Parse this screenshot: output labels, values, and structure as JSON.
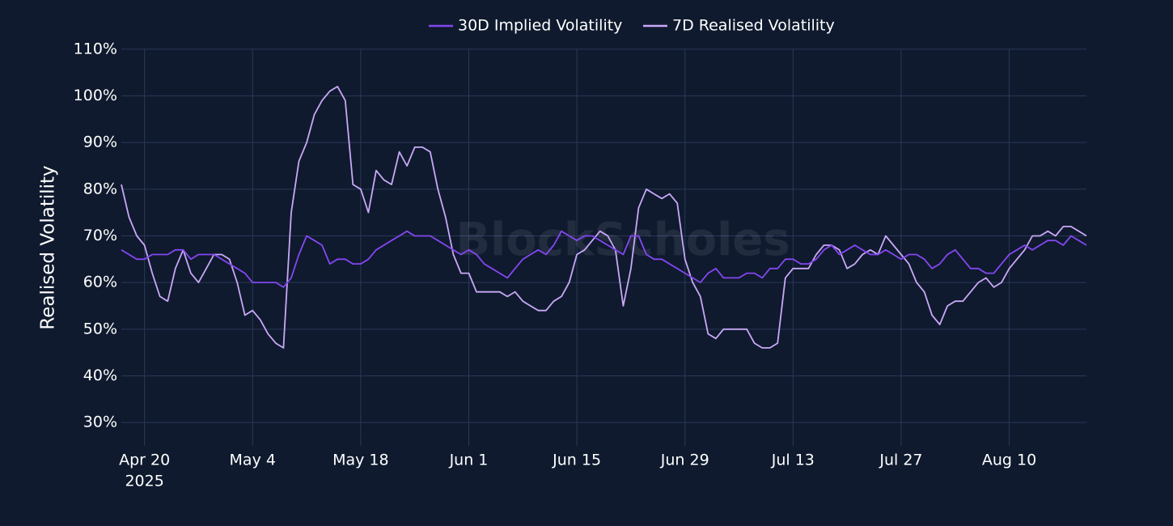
{
  "chart_data": {
    "type": "line",
    "y_axis_label": "Realised Volatility",
    "watermark": "BlockScholes",
    "x_year_label": "2025",
    "x": [
      "2025-04-17",
      "2025-04-18",
      "2025-04-19",
      "2025-04-20",
      "2025-04-21",
      "2025-04-22",
      "2025-04-23",
      "2025-04-24",
      "2025-04-25",
      "2025-04-26",
      "2025-04-27",
      "2025-04-28",
      "2025-04-29",
      "2025-04-30",
      "2025-05-01",
      "2025-05-02",
      "2025-05-03",
      "2025-05-04",
      "2025-05-05",
      "2025-05-06",
      "2025-05-07",
      "2025-05-08",
      "2025-05-09",
      "2025-05-10",
      "2025-05-11",
      "2025-05-12",
      "2025-05-13",
      "2025-05-14",
      "2025-05-15",
      "2025-05-16",
      "2025-05-17",
      "2025-05-18",
      "2025-05-19",
      "2025-05-20",
      "2025-05-21",
      "2025-05-22",
      "2025-05-23",
      "2025-05-24",
      "2025-05-25",
      "2025-05-26",
      "2025-05-27",
      "2025-05-28",
      "2025-05-29",
      "2025-05-30",
      "2025-05-31",
      "2025-06-01",
      "2025-06-02",
      "2025-06-03",
      "2025-06-04",
      "2025-06-05",
      "2025-06-06",
      "2025-06-07",
      "2025-06-08",
      "2025-06-09",
      "2025-06-10",
      "2025-06-11",
      "2025-06-12",
      "2025-06-13",
      "2025-06-14",
      "2025-06-15",
      "2025-06-16",
      "2025-06-17",
      "2025-06-18",
      "2025-06-19",
      "2025-06-20",
      "2025-06-21",
      "2025-06-22",
      "2025-06-23",
      "2025-06-24",
      "2025-06-25",
      "2025-06-26",
      "2025-06-27",
      "2025-06-28",
      "2025-06-29",
      "2025-06-30",
      "2025-07-01",
      "2025-07-02",
      "2025-07-03",
      "2025-07-04",
      "2025-07-05",
      "2025-07-06",
      "2025-07-07",
      "2025-07-08",
      "2025-07-09",
      "2025-07-10",
      "2025-07-11",
      "2025-07-12",
      "2025-07-13",
      "2025-07-14",
      "2025-07-15",
      "2025-07-16",
      "2025-07-17",
      "2025-07-18",
      "2025-07-19",
      "2025-07-20",
      "2025-07-21",
      "2025-07-22",
      "2025-07-23",
      "2025-07-24",
      "2025-07-25",
      "2025-07-26",
      "2025-07-27",
      "2025-07-28",
      "2025-07-29",
      "2025-07-30",
      "2025-07-31",
      "2025-08-01",
      "2025-08-02",
      "2025-08-03",
      "2025-08-04",
      "2025-08-05",
      "2025-08-06",
      "2025-08-07",
      "2025-08-08",
      "2025-08-09",
      "2025-08-10",
      "2025-08-11",
      "2025-08-12",
      "2025-08-13",
      "2025-08-14",
      "2025-08-15",
      "2025-08-16",
      "2025-08-17",
      "2025-08-18",
      "2025-08-19",
      "2025-08-20"
    ],
    "series": [
      {
        "name": "30D Implied Volatility",
        "color": "#8447f0",
        "values": [
          67,
          66,
          65,
          65,
          66,
          66,
          66,
          67,
          67,
          65,
          66,
          66,
          66,
          65,
          64,
          63,
          62,
          60,
          60,
          60,
          60,
          59,
          61,
          66,
          70,
          69,
          68,
          64,
          65,
          65,
          64,
          64,
          65,
          67,
          68,
          69,
          70,
          71,
          70,
          70,
          70,
          69,
          68,
          67,
          66,
          67,
          66,
          64,
          63,
          62,
          61,
          63,
          65,
          66,
          67,
          66,
          68,
          71,
          70,
          69,
          70,
          70,
          69,
          68,
          67,
          66,
          70,
          70,
          66,
          65,
          65,
          64,
          63,
          62,
          61,
          60,
          62,
          63,
          61,
          61,
          61,
          62,
          62,
          61,
          63,
          63,
          65,
          65,
          64,
          64,
          65,
          67,
          68,
          66,
          67,
          68,
          67,
          66,
          66,
          67,
          66,
          65,
          66,
          66,
          65,
          63,
          64,
          66,
          67,
          65,
          63,
          63,
          62,
          62,
          64,
          66,
          67,
          68,
          67,
          68,
          69,
          69,
          68,
          70,
          69,
          68
        ]
      },
      {
        "name": "7D Realised Volatility",
        "color": "#c9a8f7",
        "values": [
          81,
          74,
          70,
          68,
          62,
          57,
          56,
          63,
          67,
          62,
          60,
          63,
          66,
          66,
          65,
          60,
          53,
          54,
          52,
          49,
          47,
          46,
          75,
          86,
          90,
          96,
          99,
          101,
          102,
          99,
          81,
          80,
          75,
          84,
          82,
          81,
          88,
          85,
          89,
          89,
          88,
          80,
          74,
          66,
          62,
          62,
          58,
          58,
          58,
          58,
          57,
          58,
          56,
          55,
          54,
          54,
          56,
          57,
          60,
          66,
          67,
          69,
          71,
          70,
          67,
          55,
          63,
          76,
          80,
          79,
          78,
          79,
          77,
          65,
          60,
          57,
          49,
          48,
          50,
          50,
          50,
          50,
          47,
          46,
          46,
          47,
          61,
          63,
          63,
          63,
          66,
          68,
          68,
          67,
          63,
          64,
          66,
          67,
          66,
          70,
          68,
          66,
          64,
          60,
          58,
          53,
          51,
          55,
          56,
          56,
          58,
          60,
          61,
          59,
          60,
          63,
          65,
          67,
          70,
          70,
          71,
          70,
          72,
          72,
          71,
          70
        ]
      }
    ],
    "xlim": [
      "2025-04-17",
      "2025-08-20"
    ],
    "xticks": [
      {
        "value": "2025-04-20",
        "label": "Apr 20"
      },
      {
        "value": "2025-05-04",
        "label": "May 4"
      },
      {
        "value": "2025-05-18",
        "label": "May 18"
      },
      {
        "value": "2025-06-01",
        "label": "Jun 1"
      },
      {
        "value": "2025-06-15",
        "label": "Jun 15"
      },
      {
        "value": "2025-06-29",
        "label": "Jun 29"
      },
      {
        "value": "2025-07-13",
        "label": "Jul 13"
      },
      {
        "value": "2025-07-27",
        "label": "Jul 27"
      },
      {
        "value": "2025-08-10",
        "label": "Aug 10"
      }
    ],
    "ylim": [
      25,
      111
    ],
    "yticks": [
      {
        "value": 30,
        "label": "30%"
      },
      {
        "value": 40,
        "label": "40%"
      },
      {
        "value": 50,
        "label": "50%"
      },
      {
        "value": 60,
        "label": "60%"
      },
      {
        "value": 70,
        "label": "70%"
      },
      {
        "value": 80,
        "label": "80%"
      },
      {
        "value": 90,
        "label": "90%"
      },
      {
        "value": 100,
        "label": "100%"
      },
      {
        "value": 110,
        "label": "110%"
      }
    ],
    "grid": true,
    "legend_position": "top"
  }
}
